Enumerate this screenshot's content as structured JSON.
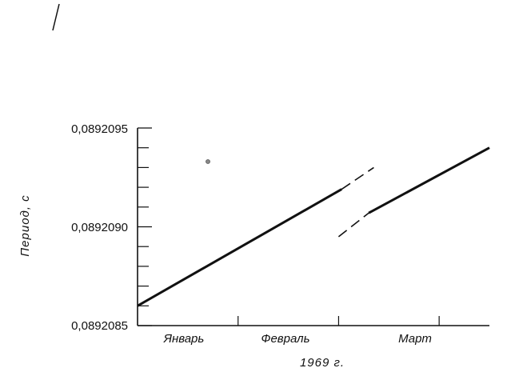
{
  "chart_data": {
    "type": "line",
    "title": "",
    "xlabel": "1969 г.",
    "ylabel": "Период, с",
    "ylim": [
      0.0892085,
      0.0892095
    ],
    "yticks_labeled": [
      "0,0892095",
      "0,0892090",
      "0,0892085"
    ],
    "yticks_labeled_values": [
      0.0892095,
      0.089209,
      0.0892085
    ],
    "yticks_minor_step": 1e-07,
    "xlim": [
      0,
      3.5
    ],
    "x_categories": [
      "Январь",
      "Февраль",
      "Март"
    ],
    "x_category_centers": [
      0.5,
      1.5,
      2.5
    ],
    "x_month_boundaries": [
      1,
      2,
      3
    ],
    "series": [
      {
        "style": "solid",
        "x": [
          0,
          2.03
        ],
        "y": [
          0.0892086,
          0.08920919
        ]
      },
      {
        "style": "dashed",
        "x": [
          2.03,
          2.35
        ],
        "y": [
          0.08920919,
          0.0892093
        ]
      },
      {
        "style": "dashed",
        "x": [
          2.0,
          2.3
        ],
        "y": [
          0.08920895,
          0.08920907
        ]
      },
      {
        "style": "solid",
        "x": [
          2.3,
          3.5
        ],
        "y": [
          0.08920907,
          0.0892094
        ]
      }
    ],
    "grid": false
  },
  "stray_marks": {
    "corner_line": true,
    "dot": true
  }
}
